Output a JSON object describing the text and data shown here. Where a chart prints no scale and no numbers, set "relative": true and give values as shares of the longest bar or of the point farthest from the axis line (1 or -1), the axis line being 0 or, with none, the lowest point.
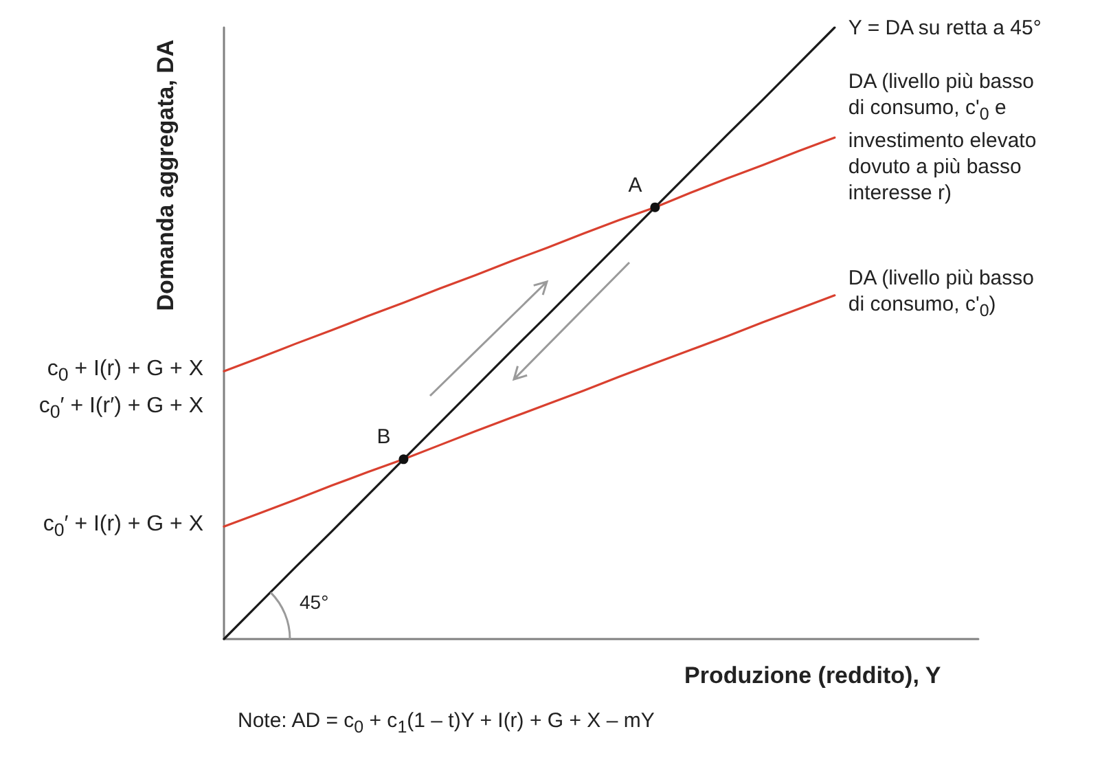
{
  "chart_data": {
    "type": "line",
    "relative": true,
    "xlabel": "Produzione (reddito), Y",
    "ylabel": "Domanda aggregata, DA",
    "categories": [
      null,
      null,
      null,
      null,
      null,
      null,
      null,
      null,
      null,
      null,
      null,
      null,
      null,
      null,
      null,
      null,
      null,
      null,
      null,
      null,
      null,
      null
    ],
    "series": [
      {
        "name": "Y = DA su retta a 45°",
        "color": "#1a1a1a",
        "values": [
          0,
          0.059,
          0.118,
          0.176,
          0.235,
          0.294,
          0.353,
          0.412,
          0.471,
          0.529,
          0.588,
          0.647,
          0.706,
          0.765,
          0.824,
          0.882,
          0.941,
          1,
          null,
          null,
          null,
          null
        ]
      },
      {
        "name": "DA (livello più basso di consumo, c'$_{0}$ e investimento elevato dovuto a più basso interesse r)",
        "color": "#d9402f",
        "values": [
          0.438,
          0.46,
          0.483,
          0.505,
          0.528,
          0.55,
          0.573,
          0.595,
          0.618,
          0.64,
          0.663,
          0.685,
          0.706,
          0.73,
          0.753,
          0.775,
          0.798,
          0.82,
          null,
          null,
          null,
          null
        ]
      },
      {
        "name": "DA (livello più basso di consumo, c'$_{0}$)",
        "color": "#d9402f",
        "values": [
          0.184,
          0.206,
          0.228,
          0.251,
          0.273,
          0.294,
          0.317,
          0.34,
          0.362,
          0.384,
          0.406,
          0.429,
          0.451,
          0.473,
          0.495,
          0.518,
          0.54,
          0.562,
          null,
          null,
          null,
          null
        ]
      }
    ],
    "annotations": [
      {
        "text": "A",
        "y": 0.706
      },
      {
        "text": "B",
        "y": 0.294
      },
      "c$_{0}$ + I(r) + G + X",
      "c$_{0}$′ + I(r′) + G + X",
      "c$_{0}$′ + I(r) + G + X",
      "45°",
      "Note: AD = c$_{0}$ + c$_{1}$(1 – t)Y + I(r) + G + X – mY"
    ],
    "grid": false,
    "marker": "none",
    "line_style": "solid"
  }
}
